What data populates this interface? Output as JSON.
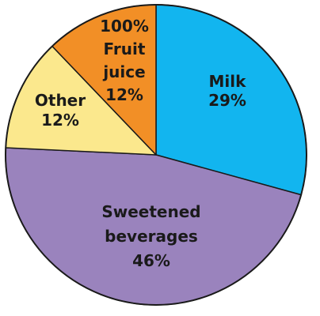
{
  "chart_data": {
    "type": "pie",
    "title": "",
    "start_angle_deg": 0,
    "direction": "clockwise",
    "slices": [
      {
        "label_lines": [
          "Milk",
          "29%"
        ],
        "value": 29,
        "color": "#12b5ef"
      },
      {
        "label_lines": [
          "Sweetened",
          "beverages",
          "46%"
        ],
        "value": 46,
        "color": "#9a83bd"
      },
      {
        "label_lines": [
          "Other",
          "12%"
        ],
        "value": 12,
        "color": "#fbe88d"
      },
      {
        "label_lines": [
          "100%",
          "Fruit",
          "juice",
          "12%"
        ],
        "value": 12,
        "color": "#f28f26"
      }
    ],
    "stroke_color": "#1a1a1a"
  }
}
